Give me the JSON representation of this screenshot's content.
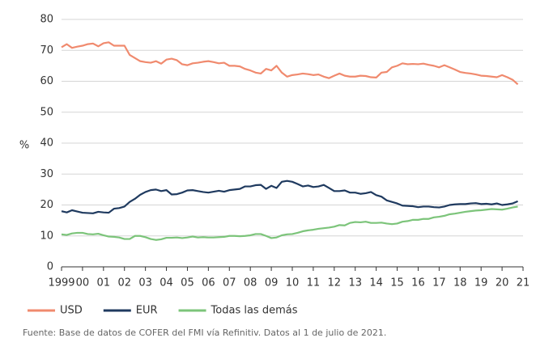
{
  "chart_data": {
    "type": "line",
    "y_label": "%",
    "source": "Fuente: Base de datos de COFER del FMI vía Refinitiv. Datos al 1 de julio de 2021.",
    "x": [
      1999,
      1999.25,
      1999.5,
      1999.75,
      2000,
      2000.25,
      2000.5,
      2000.75,
      2001,
      2001.25,
      2001.5,
      2001.75,
      2002,
      2002.25,
      2002.5,
      2002.75,
      2003,
      2003.25,
      2003.5,
      2003.75,
      2004,
      2004.25,
      2004.5,
      2004.75,
      2005,
      2005.25,
      2005.5,
      2005.75,
      2006,
      2006.25,
      2006.5,
      2006.75,
      2007,
      2007.25,
      2007.5,
      2007.75,
      2008,
      2008.25,
      2008.5,
      2008.75,
      2009,
      2009.25,
      2009.5,
      2009.75,
      2010,
      2010.25,
      2010.5,
      2010.75,
      2011,
      2011.25,
      2011.5,
      2011.75,
      2012,
      2012.25,
      2012.5,
      2012.75,
      2013,
      2013.25,
      2013.5,
      2013.75,
      2014,
      2014.25,
      2014.5,
      2014.75,
      2015,
      2015.25,
      2015.5,
      2015.75,
      2016,
      2016.25,
      2016.5,
      2016.75,
      2017,
      2017.25,
      2017.5,
      2017.75,
      2018,
      2018.25,
      2018.5,
      2018.75,
      2019,
      2019.25,
      2019.5,
      2019.75,
      2020,
      2020.25,
      2020.5,
      2020.75
    ],
    "series": [
      {
        "name": "USD",
        "color": "#f08a6e",
        "values": [
          71,
          72,
          70.8,
          71.2,
          71.5,
          72,
          72.2,
          71.3,
          72.3,
          72.6,
          71.5,
          71.5,
          71.5,
          68.5,
          67.5,
          66.5,
          66.2,
          66,
          66.5,
          65.7,
          67,
          67.3,
          66.8,
          65.5,
          65.2,
          65.8,
          66,
          66.3,
          66.5,
          66.2,
          65.8,
          66,
          65,
          65,
          64.8,
          64,
          63.5,
          62.8,
          62.5,
          64,
          63.5,
          65,
          62.8,
          61.5,
          62,
          62.2,
          62.5,
          62.3,
          62,
          62.2,
          61.5,
          61,
          61.8,
          62.5,
          61.8,
          61.5,
          61.5,
          61.8,
          61.7,
          61.3,
          61.2,
          62.8,
          63,
          64.5,
          65,
          65.8,
          65.5,
          65.6,
          65.5,
          65.7,
          65.3,
          65,
          64.5,
          65.2,
          64.5,
          63.8,
          63,
          62.7,
          62.5,
          62.2,
          61.8,
          61.7,
          61.5,
          61.3,
          62,
          61.3,
          60.5,
          59
        ]
      },
      {
        "name": "EUR",
        "color": "#1f3a5f",
        "values": [
          18,
          17.6,
          18.3,
          17.9,
          17.5,
          17.4,
          17.3,
          17.8,
          17.6,
          17.5,
          18.8,
          19,
          19.5,
          21,
          22,
          23.3,
          24.2,
          24.8,
          25,
          24.5,
          24.8,
          23.4,
          23.5,
          24,
          24.7,
          24.8,
          24.5,
          24.2,
          24,
          24.3,
          24.6,
          24.3,
          24.8,
          25,
          25.2,
          26,
          26,
          26.4,
          26.5,
          25.2,
          26.2,
          25.5,
          27.5,
          27.8,
          27.5,
          26.8,
          26,
          26.3,
          25.8,
          26,
          26.5,
          25.5,
          24.5,
          24.5,
          24.7,
          24,
          24,
          23.6,
          23.8,
          24.2,
          23.2,
          22.7,
          21.5,
          21,
          20.5,
          19.8,
          19.7,
          19.6,
          19.3,
          19.5,
          19.5,
          19.3,
          19.2,
          19.5,
          20,
          20.2,
          20.3,
          20.3,
          20.5,
          20.6,
          20.3,
          20.4,
          20.2,
          20.5,
          20,
          20.2,
          20.5,
          21.2
        ]
      },
      {
        "name": "Todas las demás",
        "color": "#7cc47a",
        "values": [
          10.5,
          10.3,
          10.8,
          11,
          11,
          10.6,
          10.5,
          10.7,
          10.2,
          9.8,
          9.7,
          9.5,
          9,
          9,
          10,
          10,
          9.6,
          9,
          8.7,
          8.9,
          9.4,
          9.4,
          9.5,
          9.3,
          9.5,
          9.8,
          9.5,
          9.6,
          9.5,
          9.5,
          9.6,
          9.7,
          10,
          10,
          9.9,
          10,
          10.2,
          10.6,
          10.6,
          10,
          9.3,
          9.5,
          10.2,
          10.5,
          10.6,
          11,
          11.5,
          11.8,
          12,
          12.3,
          12.5,
          12.7,
          13,
          13.5,
          13.4,
          14.2,
          14.5,
          14.4,
          14.6,
          14.2,
          14.2,
          14.3,
          14,
          13.8,
          14,
          14.6,
          14.8,
          15.2,
          15.2,
          15.5,
          15.5,
          16,
          16.2,
          16.5,
          17,
          17.2,
          17.5,
          17.8,
          18,
          18.2,
          18.3,
          18.5,
          18.7,
          18.6,
          18.5,
          18.8,
          19.2,
          19.5
        ]
      }
    ],
    "xlim": [
      1999,
      2021
    ],
    "xticks": [
      {
        "value": 1999,
        "label": "1999"
      },
      {
        "value": 2000,
        "label": "00"
      },
      {
        "value": 2001,
        "label": "01"
      },
      {
        "value": 2002,
        "label": "02"
      },
      {
        "value": 2003,
        "label": "03"
      },
      {
        "value": 2004,
        "label": "04"
      },
      {
        "value": 2005,
        "label": "05"
      },
      {
        "value": 2006,
        "label": "06"
      },
      {
        "value": 2007,
        "label": "07"
      },
      {
        "value": 2008,
        "label": "08"
      },
      {
        "value": 2009,
        "label": "09"
      },
      {
        "value": 2010,
        "label": "10"
      },
      {
        "value": 2011,
        "label": "11"
      },
      {
        "value": 2012,
        "label": "12"
      },
      {
        "value": 2013,
        "label": "13"
      },
      {
        "value": 2014,
        "label": "14"
      },
      {
        "value": 2015,
        "label": "15"
      },
      {
        "value": 2016,
        "label": "16"
      },
      {
        "value": 2017,
        "label": "17"
      },
      {
        "value": 2018,
        "label": "18"
      },
      {
        "value": 2019,
        "label": "19"
      },
      {
        "value": 2020,
        "label": "20"
      },
      {
        "value": 2021,
        "label": "21"
      }
    ],
    "ylim": [
      0,
      80
    ],
    "yticks": [
      0,
      10,
      20,
      30,
      40,
      50,
      60,
      70,
      80
    ],
    "grid": true,
    "legend": "bottom-left"
  }
}
